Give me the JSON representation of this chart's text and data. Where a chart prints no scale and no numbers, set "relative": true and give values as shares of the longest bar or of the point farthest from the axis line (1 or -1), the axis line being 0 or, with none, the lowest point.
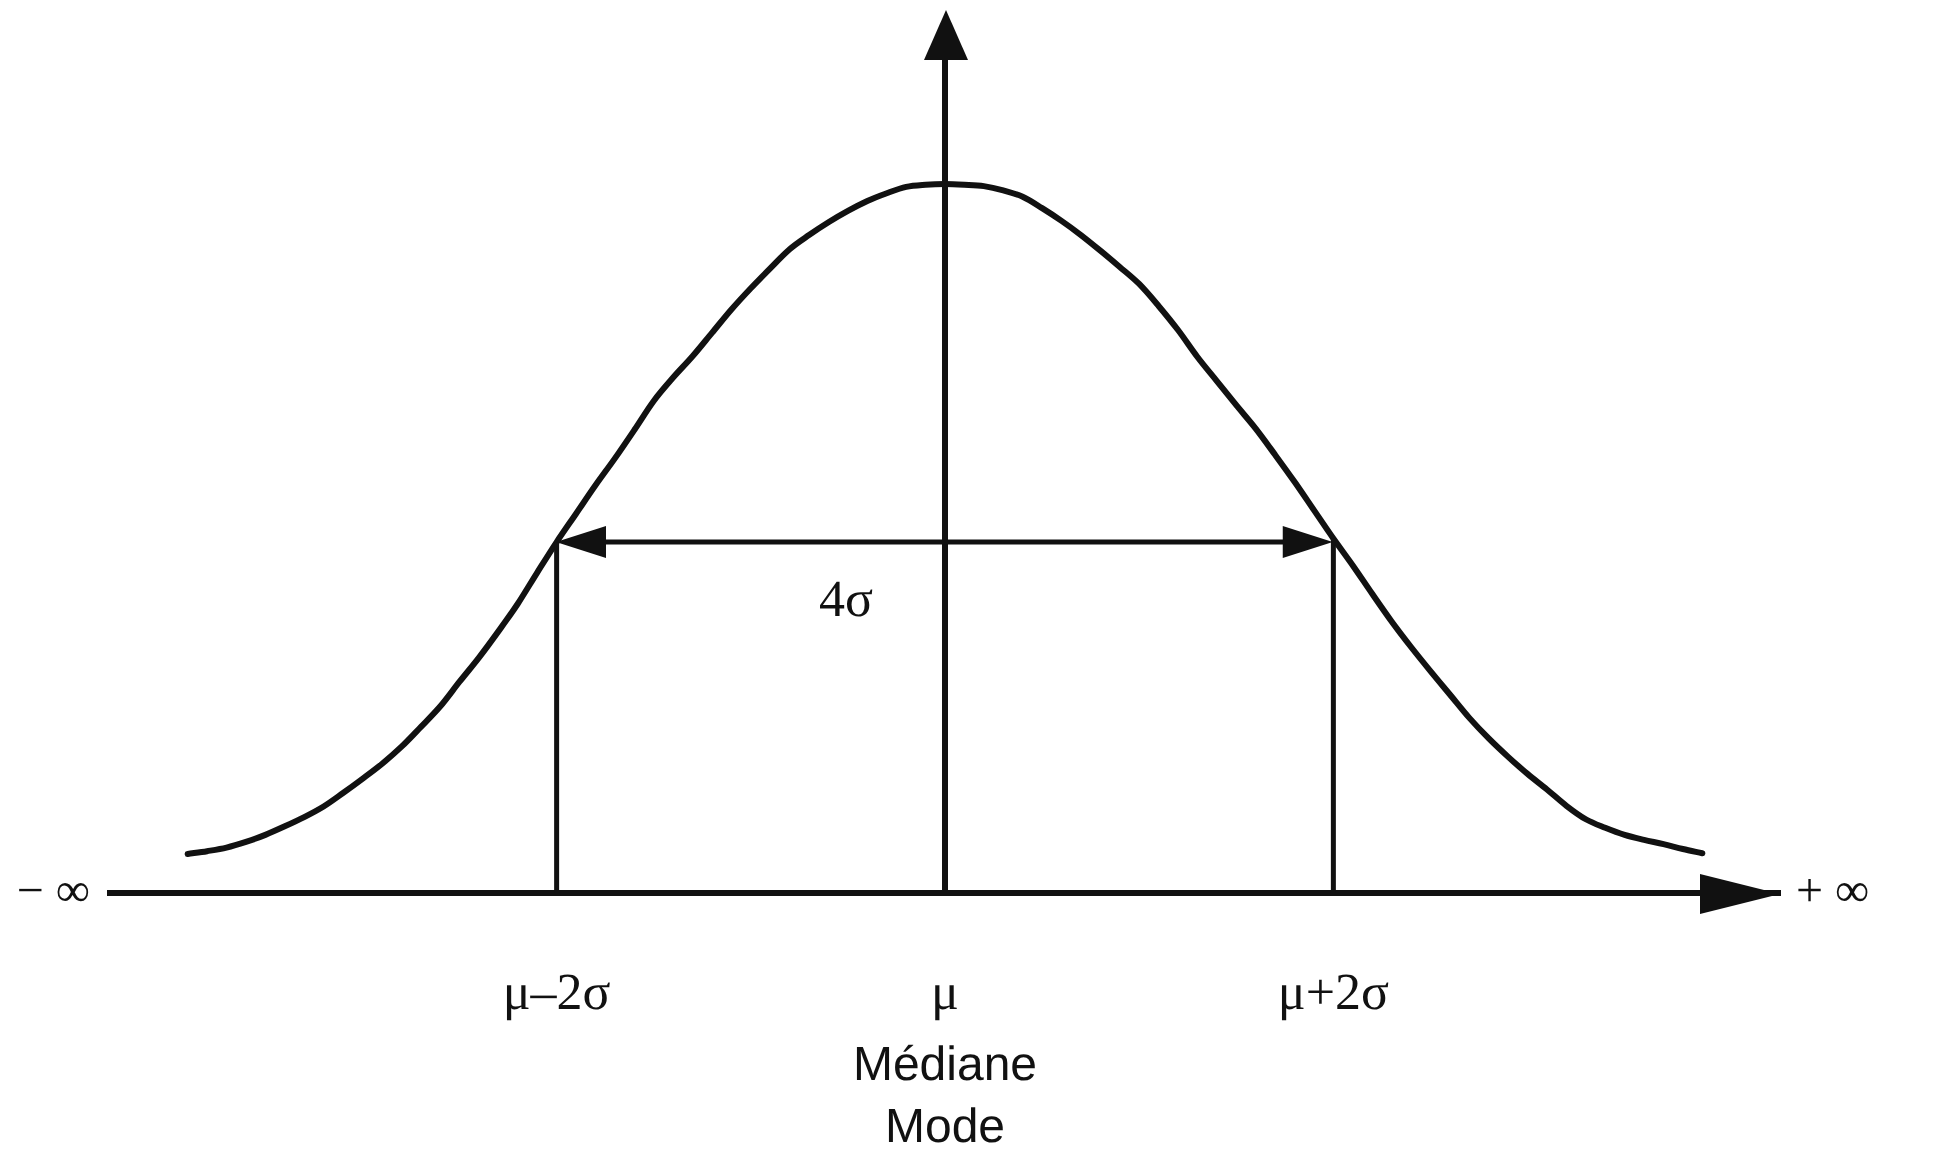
{
  "chart_data": {
    "type": "line",
    "relative": true,
    "color": "#111111",
    "categories": [
      null,
      null,
      null,
      null,
      null,
      null,
      null,
      null,
      null,
      null,
      null,
      null,
      null,
      null,
      null,
      null,
      null,
      null,
      null,
      null,
      null,
      null,
      null,
      "μ–2σ",
      null,
      null,
      null,
      null,
      null,
      null,
      null,
      null,
      null,
      null,
      null,
      null,
      null,
      null,
      null,
      null,
      null,
      null,
      null,
      "μ\nMédiane\nMode",
      null,
      null,
      null,
      null,
      null,
      null,
      null,
      null,
      null,
      null,
      null,
      null,
      null,
      null,
      null,
      null,
      null,
      null,
      null,
      "μ+2σ",
      null,
      null,
      null,
      null,
      null,
      null,
      null,
      null,
      null,
      null,
      null,
      null,
      null,
      null,
      null,
      null,
      null,
      null,
      null,
      null,
      null,
      null,
      null
    ],
    "values": [
      null,
      null,
      null,
      null,
      0.055,
      0.059,
      0.064,
      0.072,
      0.082,
      0.094,
      0.107,
      0.122,
      0.141,
      0.161,
      0.182,
      0.206,
      0.234,
      0.263,
      0.298,
      0.332,
      0.369,
      0.408,
      0.452,
      0.495,
      0.535,
      0.575,
      0.613,
      0.653,
      0.694,
      0.727,
      0.757,
      0.79,
      0.823,
      0.853,
      0.881,
      0.908,
      0.928,
      0.946,
      0.962,
      0.976,
      0.987,
      0.996,
      0.999,
      1,
      0.999,
      0.997,
      0.991,
      0.982,
      0.966,
      0.948,
      0.928,
      0.906,
      0.883,
      0.859,
      0.828,
      0.794,
      0.756,
      0.722,
      0.688,
      0.655,
      0.618,
      0.58,
      0.54,
      0.5,
      0.462,
      0.422,
      0.383,
      0.347,
      0.313,
      0.28,
      0.247,
      0.218,
      0.192,
      0.168,
      0.146,
      0.123,
      0.104,
      0.092,
      0.082,
      0.075,
      0.069,
      0.062,
      0.056,
      null,
      null,
      null,
      null
    ],
    "ref_lines": [
      {
        "axis": "x",
        "value": "μ–2σ"
      },
      {
        "axis": "x",
        "value": "μ+2σ"
      }
    ],
    "annotations": [
      "4σ",
      "− ∞",
      "+ ∞"
    ]
  }
}
